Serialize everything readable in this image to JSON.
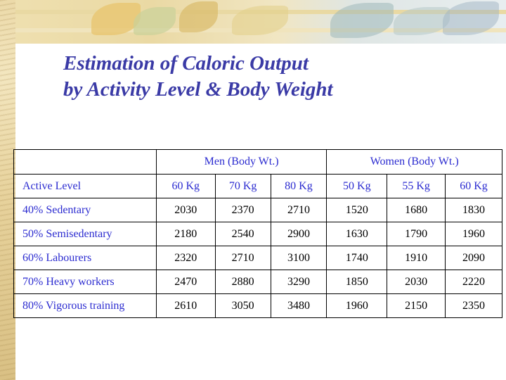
{
  "title": {
    "line1": "Estimation of Caloric Output",
    "line2": "by Activity Level & Body Weight"
  },
  "table": {
    "group_headers": [
      "Men (Body Wt.)",
      "Women (Body Wt.)"
    ],
    "row_header": "Active Level",
    "columns": [
      "60 Kg",
      "70 Kg",
      "80 Kg",
      "50 Kg",
      "55 Kg",
      "60 Kg"
    ],
    "rows": [
      {
        "label": "40% Sedentary",
        "values": [
          "2030",
          "2370",
          "2710",
          "1520",
          "1680",
          "1830"
        ]
      },
      {
        "label": "50% Semisedentary",
        "values": [
          "2180",
          "2540",
          "2900",
          "1630",
          "1790",
          "1960"
        ]
      },
      {
        "label": "60% Labourers",
        "values": [
          "2320",
          "2710",
          "3100",
          "1740",
          "1910",
          "2090"
        ]
      },
      {
        "label": "70% Heavy workers",
        "values": [
          "2470",
          "2880",
          "3290",
          "1850",
          "2030",
          "2220"
        ]
      },
      {
        "label": "80% Vigorous training",
        "values": [
          "2610",
          "3050",
          "3480",
          "1960",
          "2150",
          "2350"
        ]
      }
    ]
  },
  "colors": {
    "title": "#3a3aa6",
    "label_text": "#2b2bd0",
    "value_text": "#000000"
  }
}
